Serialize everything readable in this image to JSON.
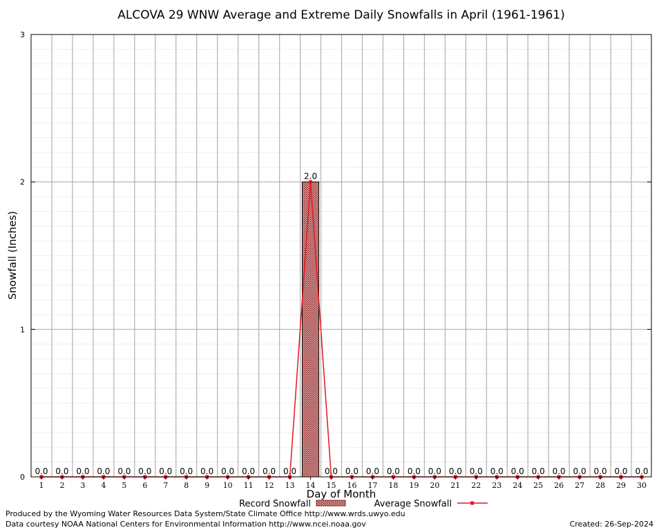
{
  "chart_data": {
    "type": "bar",
    "title": "ALCOVA 29 WNW Average and Extreme Daily Snowfalls in April (1961-1961)",
    "xlabel": "Day of Month",
    "ylabel": "Snowfall (Inches)",
    "ylim": [
      0,
      3
    ],
    "yticks": [
      "0",
      "1",
      "2",
      "3"
    ],
    "grid": true,
    "legend_position": "bottom-center",
    "categories": [
      "1",
      "2",
      "3",
      "4",
      "5",
      "6",
      "7",
      "8",
      "9",
      "10",
      "11",
      "12",
      "13",
      "14",
      "15",
      "16",
      "17",
      "18",
      "19",
      "20",
      "21",
      "22",
      "23",
      "24",
      "25",
      "26",
      "27",
      "28",
      "29",
      "30"
    ],
    "series": [
      {
        "name": "Record Snowfall",
        "kind": "bar",
        "color": "#8b1a1a",
        "values": [
          0,
          0,
          0,
          0,
          0,
          0,
          0,
          0,
          0,
          0,
          0,
          0,
          0,
          2.0,
          0,
          0,
          0,
          0,
          0,
          0,
          0,
          0,
          0,
          0,
          0,
          0,
          0,
          0,
          0,
          0
        ],
        "labels": [
          "0.0",
          "0.0",
          "0.0",
          "0.0",
          "0.0",
          "0.0",
          "0.0",
          "0.0",
          "0.0",
          "0.0",
          "0.0",
          "0.0",
          "0.0",
          "2.0",
          "0.0",
          "0.0",
          "0.0",
          "0.0",
          "0.0",
          "0.0",
          "0.0",
          "0.0",
          "0.0",
          "0.0",
          "0.0",
          "0.0",
          "0.0",
          "0.0",
          "0.0",
          "0.0"
        ]
      },
      {
        "name": "Average Snowfall",
        "kind": "line",
        "color": "#e8141c",
        "values": [
          0,
          0,
          0,
          0,
          0,
          0,
          0,
          0,
          0,
          0,
          0,
          0,
          0,
          2.0,
          0,
          0,
          0,
          0,
          0,
          0,
          0,
          0,
          0,
          0,
          0,
          0,
          0,
          0,
          0,
          0
        ]
      }
    ]
  },
  "footer": {
    "produced_by": "Produced by the Wyoming Water Resources Data System/State Climate Office http://www.wrds.uwyo.edu",
    "courtesy": "Data courtesy NOAA National Centers for Environmental Information http://www.ncei.noaa.gov",
    "created": "Created:  26-Sep-2024"
  }
}
